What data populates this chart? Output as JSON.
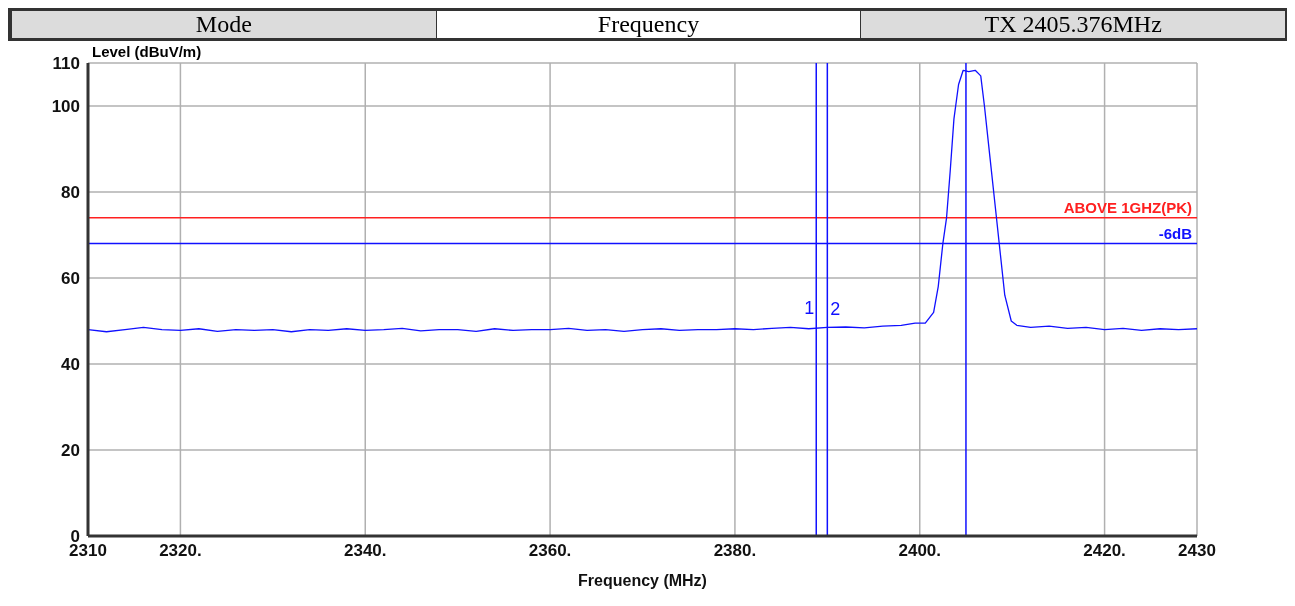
{
  "chart_data": {
    "type": "line",
    "xlabel": "Frequency (MHz)",
    "ylabel": "Level (dBuV/m)",
    "annotations": [
      "Mode",
      "Frequency",
      "TX 2405.376MHz",
      {
        "text": "1",
        "x": 2388.8,
        "y": 48.2
      },
      {
        "text": "2",
        "x": 2390,
        "y": 48.5
      }
    ],
    "xlim": [
      2310,
      2430
    ],
    "ylim": [
      0,
      110
    ],
    "xticks": [
      2310,
      {
        "value": 2320,
        "label": "2320."
      },
      {
        "value": 2340,
        "label": "2340."
      },
      {
        "value": 2360,
        "label": "2360."
      },
      {
        "value": 2380,
        "label": "2380."
      },
      {
        "value": 2400,
        "label": "2400."
      },
      {
        "value": 2420,
        "label": "2420."
      },
      2430
    ],
    "yticks": [
      0,
      20,
      40,
      60,
      80,
      100,
      110
    ],
    "grid": true,
    "series": [
      {
        "color": "#1010ff",
        "x": [
          2310,
          2312,
          2314,
          2316,
          2318,
          2320,
          2322,
          2324,
          2326,
          2328,
          2330,
          2332,
          2334,
          2336,
          2338,
          2340,
          2342,
          2344,
          2346,
          2348,
          2350,
          2352,
          2354,
          2356,
          2358,
          2360,
          2362,
          2364,
          2366,
          2368,
          2370,
          2372,
          2374,
          2376,
          2378,
          2380,
          2382,
          2384,
          2386,
          2388,
          2390,
          2392,
          2394,
          2396,
          2398,
          2399.5,
          2400.6,
          2401.5,
          2402,
          2402.5,
          2402.9,
          2403.3,
          2403.7,
          2404.2,
          2404.7,
          2405.3,
          2406,
          2406.6,
          2407,
          2407.6,
          2408.3,
          2408.6,
          2409.2,
          2409.9,
          2410.5,
          2412,
          2414,
          2416,
          2418,
          2420,
          2422,
          2424,
          2426,
          2428,
          2430
        ],
        "values": [
          48,
          47.5,
          48,
          48.5,
          48,
          47.8,
          48.2,
          47.6,
          48,
          47.8,
          48,
          47.5,
          48,
          47.8,
          48.2,
          47.8,
          48,
          48.3,
          47.7,
          48,
          48,
          47.6,
          48.2,
          47.8,
          48,
          48,
          48.3,
          47.8,
          48,
          47.6,
          48,
          48.2,
          47.8,
          48,
          48,
          48.2,
          48,
          48.3,
          48.5,
          48.2,
          48.5,
          48.6,
          48.4,
          48.8,
          49,
          49.5,
          49.5,
          52,
          58,
          68,
          74,
          85,
          97,
          105,
          108.3,
          108,
          108.3,
          107,
          100,
          88,
          74,
          68,
          56,
          50,
          49,
          48.5,
          48.8,
          48.3,
          48.5,
          48,
          48.3,
          47.8,
          48.2,
          48,
          48.2
        ]
      }
    ],
    "ref_lines": [
      {
        "axis": "y",
        "value": 74,
        "label": "ABOVE 1GHZ(PK)",
        "color": "#ff2020"
      },
      {
        "axis": "y",
        "value": 68,
        "label": "-6dB",
        "color": "#1010ff"
      },
      {
        "axis": "x",
        "value": 2388.8,
        "label": null,
        "color": "#1010ff"
      },
      {
        "axis": "x",
        "value": 2390,
        "label": null,
        "color": "#1010ff"
      },
      {
        "axis": "x",
        "value": 2405,
        "label": null,
        "color": "#1010ff"
      }
    ]
  }
}
